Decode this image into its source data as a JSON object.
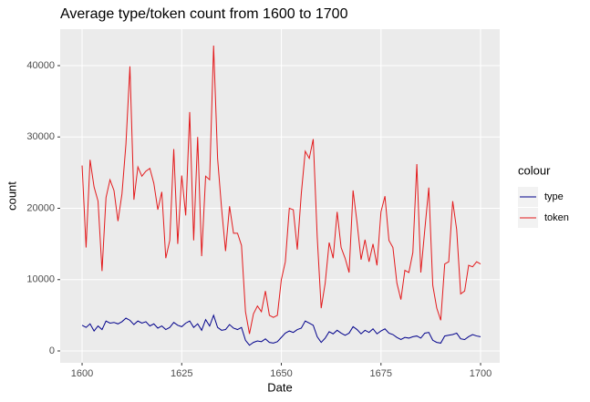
{
  "chart_data": {
    "type": "line",
    "title": "Average type/token count from 1600 to 1700",
    "x_label": "Date",
    "y_label": "count",
    "legend_title": "colour",
    "legend_position": "right",
    "grid": true,
    "x": [
      1600,
      1601,
      1602,
      1603,
      1604,
      1605,
      1606,
      1607,
      1608,
      1609,
      1610,
      1611,
      1612,
      1613,
      1614,
      1615,
      1616,
      1617,
      1618,
      1619,
      1620,
      1621,
      1622,
      1623,
      1624,
      1625,
      1626,
      1627,
      1628,
      1629,
      1630,
      1631,
      1632,
      1633,
      1634,
      1635,
      1636,
      1637,
      1638,
      1639,
      1640,
      1641,
      1642,
      1643,
      1644,
      1645,
      1646,
      1647,
      1648,
      1649,
      1650,
      1651,
      1652,
      1653,
      1654,
      1655,
      1656,
      1657,
      1658,
      1659,
      1660,
      1661,
      1662,
      1663,
      1664,
      1665,
      1666,
      1667,
      1668,
      1669,
      1670,
      1671,
      1672,
      1673,
      1674,
      1675,
      1676,
      1677,
      1678,
      1679,
      1680,
      1681,
      1682,
      1683,
      1684,
      1685,
      1686,
      1687,
      1688,
      1689,
      1690,
      1691,
      1692,
      1693,
      1694,
      1695,
      1696,
      1697,
      1698,
      1699,
      1700
    ],
    "series": [
      {
        "name": "type",
        "color": "#00008b",
        "values": [
          3600,
          3300,
          3800,
          2800,
          3500,
          3000,
          4200,
          3900,
          4000,
          3800,
          4100,
          4600,
          4300,
          3700,
          4200,
          3900,
          4100,
          3500,
          3800,
          3200,
          3500,
          3000,
          3300,
          4000,
          3600,
          3400,
          3900,
          4200,
          3300,
          3800,
          2900,
          4400,
          3500,
          5000,
          3300,
          2900,
          3000,
          3700,
          3200,
          3000,
          3300,
          1500,
          800,
          1200,
          1400,
          1300,
          1700,
          1200,
          1100,
          1300,
          1900,
          2500,
          2800,
          2600,
          3000,
          3200,
          4200,
          3900,
          3600,
          2000,
          1200,
          1800,
          2700,
          2400,
          2900,
          2500,
          2200,
          2500,
          3400,
          3000,
          2400,
          2900,
          2600,
          3100,
          2400,
          2800,
          3100,
          2500,
          2300,
          1900,
          1600,
          1900,
          1800,
          2000,
          2100,
          1800,
          2500,
          2600,
          1500,
          1200,
          1100,
          2100,
          2200,
          2300,
          2500,
          1700,
          1600,
          2000,
          2300,
          2100,
          2000
        ]
      },
      {
        "name": "token",
        "color": "#e31a1c",
        "values": [
          26000,
          14500,
          26800,
          23000,
          21000,
          11200,
          21500,
          24000,
          22500,
          18200,
          22000,
          29000,
          39900,
          21200,
          25800,
          24500,
          25200,
          25600,
          23500,
          19800,
          22300,
          13000,
          15500,
          28300,
          15000,
          24600,
          19000,
          33500,
          15500,
          30000,
          13300,
          24500,
          24000,
          42800,
          27000,
          20000,
          14000,
          20300,
          16500,
          16500,
          14800,
          5500,
          2400,
          5200,
          6300,
          5500,
          8400,
          5000,
          4700,
          5000,
          10000,
          12500,
          20000,
          19800,
          14200,
          22000,
          28000,
          27000,
          29700,
          16000,
          6000,
          9500,
          15200,
          13000,
          19500,
          14500,
          13000,
          11000,
          22500,
          18000,
          12800,
          15600,
          12500,
          15000,
          12000,
          19500,
          21700,
          15500,
          14500,
          9500,
          7200,
          11300,
          11000,
          13800,
          26200,
          11000,
          17000,
          22900,
          9200,
          6000,
          4300,
          12200,
          12500,
          21000,
          17000,
          8000,
          8400,
          12000,
          11800,
          12500,
          12200
        ]
      }
    ],
    "xlim": [
      1594.5,
      1704.8
    ],
    "xticks": [
      1600,
      1625,
      1650,
      1675,
      1700
    ],
    "ylim": [
      -1660,
      45110
    ],
    "yticks": [
      0,
      10000,
      20000,
      30000,
      40000
    ]
  }
}
